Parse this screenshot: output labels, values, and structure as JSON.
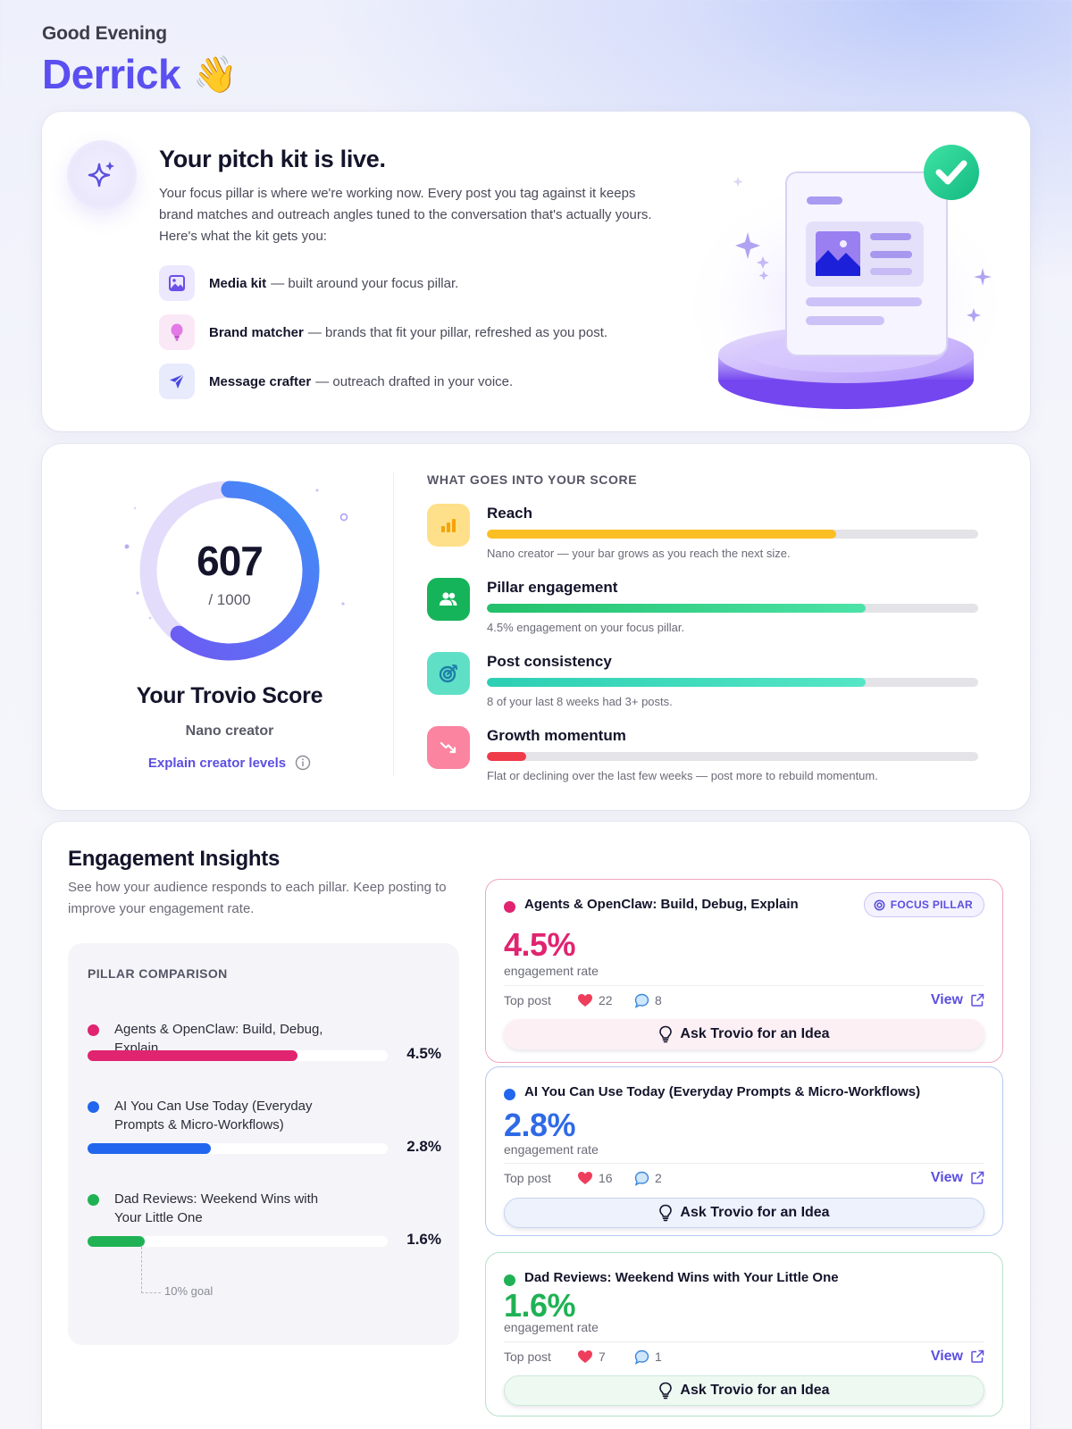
{
  "greeting": {
    "salutation": "Good Evening",
    "name": "Derrick",
    "emoji": "👋"
  },
  "pitch_kit": {
    "title": "Your pitch kit is live.",
    "intro": "Your focus pillar is where we're working now. Every post you tag against it keeps brand matches and outreach angles tuned to the conversation that's actually yours. Here's what the kit gets you:",
    "icon": "sparkle-icon",
    "features": [
      {
        "name": "Media kit",
        "desc": "— built around your focus pillar.",
        "icon": "image-icon",
        "bg": "#ece8fd",
        "color": "#6c4ee8"
      },
      {
        "name": "Brand matcher",
        "desc": "— brands that fit your pillar, refreshed as you post.",
        "icon": "lightbulb-icon",
        "bg": "#fbe8f7",
        "color": "#d55fd9"
      },
      {
        "name": "Message crafter",
        "desc": "— outreach drafted in your voice.",
        "icon": "send-icon",
        "bg": "#e8ebfc",
        "color": "#4b49e0"
      }
    ],
    "illustration": "document-check-illustration"
  },
  "score": {
    "value": "607",
    "max": "/ 1000",
    "percent": 60.7,
    "title": "Your Trovio Score",
    "level": "Nano creator",
    "explain_link": "Explain creator levels",
    "factors_heading": "WHAT GOES INTO YOUR SCORE",
    "factors": [
      {
        "name": "Reach",
        "desc": "Nano creator — your bar grows as you reach the next size.",
        "fill": 71,
        "icon": "bar-chart-icon",
        "icon_bg": "#ffe08a",
        "icon_color": "#f5a30b",
        "bar": "#fbbf24"
      },
      {
        "name": "Pillar engagement",
        "desc": "4.5% engagement on your focus pillar.",
        "fill": 77,
        "icon": "users-icon",
        "icon_bg": "#16b45a",
        "icon_color": "#ffffff",
        "bar": "linear-gradient(90deg,#22c06a,#4ce3a8)"
      },
      {
        "name": "Post consistency",
        "desc": "8 of your last 8 weeks had 3+ posts.",
        "fill": 77,
        "icon": "target-icon",
        "icon_bg": "#5fe0c6",
        "icon_color": "#1f7fa8",
        "bar": "linear-gradient(90deg,#2ccfb3,#55e6c6)"
      },
      {
        "name": "Growth momentum",
        "desc": "Flat or declining over the last few weeks — post more to rebuild momentum.",
        "fill": 8,
        "icon": "trending-down-icon",
        "icon_bg": "#fb84a0",
        "icon_color": "#ffffff",
        "bar": "#ef3b4a"
      }
    ]
  },
  "engagement": {
    "title": "Engagement Insights",
    "intro": "See how your audience responds to each pillar. Keep posting to improve your engagement rate.",
    "comparison_heading": "PILLAR COMPARISON",
    "goal_label": "10% goal",
    "rate_label": "engagement rate",
    "top_post_label": "Top post",
    "view_label": "View",
    "ask_label": "Ask Trovio for an Idea",
    "focus_badge": "FOCUS PILLAR",
    "pillars": [
      {
        "name": "Agents & OpenClaw: Build, Debug, Explain",
        "rate": "4.5%",
        "bar_pct": 70,
        "color": "#e0246f",
        "likes": "22",
        "comments": "8",
        "focus": true,
        "border": "#f0a6c3",
        "ask_bg": "#fdf0f4"
      },
      {
        "name": "AI You Can Use Today (Everyday Prompts & Micro-Workflows)",
        "rate": "2.8%",
        "bar_pct": 41,
        "color": "#2266ee",
        "likes": "16",
        "comments": "2",
        "focus": false,
        "border": "#b8c8f1",
        "ask_bg": "#eef2fd"
      },
      {
        "name": "Dad Reviews: Weekend Wins with Your Little One",
        "rate": "1.6%",
        "bar_pct": 19,
        "color": "#1fb254",
        "likes": "7",
        "comments": "1",
        "focus": false,
        "border": "#b6e2c8",
        "ask_bg": "#eef9f2"
      }
    ]
  },
  "chart_data": {
    "type": "bar",
    "title": "PILLAR COMPARISON",
    "categories": [
      "Agents & OpenClaw: Build, Debug, Explain",
      "AI You Can Use Today (Everyday Prompts & Micro-Workflows)",
      "Dad Reviews: Weekend Wins with Your Little One"
    ],
    "values": [
      4.5,
      2.8,
      1.6
    ],
    "ylabel": "engagement rate (%)",
    "annotations": [
      "10% goal"
    ]
  }
}
